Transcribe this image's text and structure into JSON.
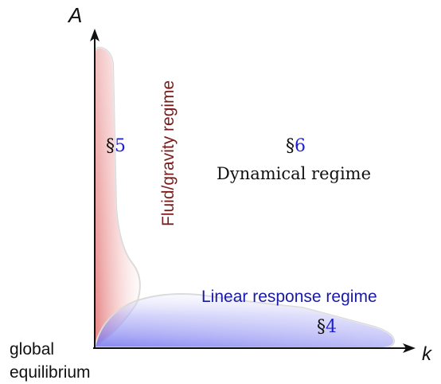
{
  "axes": {
    "y_label": "A",
    "x_label": "k",
    "origin_label_line1": "global",
    "origin_label_line2": "equilibrium"
  },
  "regimes": {
    "fluid": {
      "label": "Fluid/gravity regime",
      "section_mark": "§",
      "section_num": "5",
      "color": "#7a1c1c"
    },
    "dynamical": {
      "section_mark": "§",
      "section_num": "6",
      "label": "Dynamical regime",
      "color": "#111111"
    },
    "linear": {
      "label": "Linear response regime",
      "section_mark": "§",
      "section_num": "4",
      "color": "#1a1aa8"
    }
  },
  "colors": {
    "section_number": "#1f1fd6",
    "axis": "#111111",
    "red_fill": "#e07a7a",
    "blue_fill": "#7f7ff0"
  }
}
